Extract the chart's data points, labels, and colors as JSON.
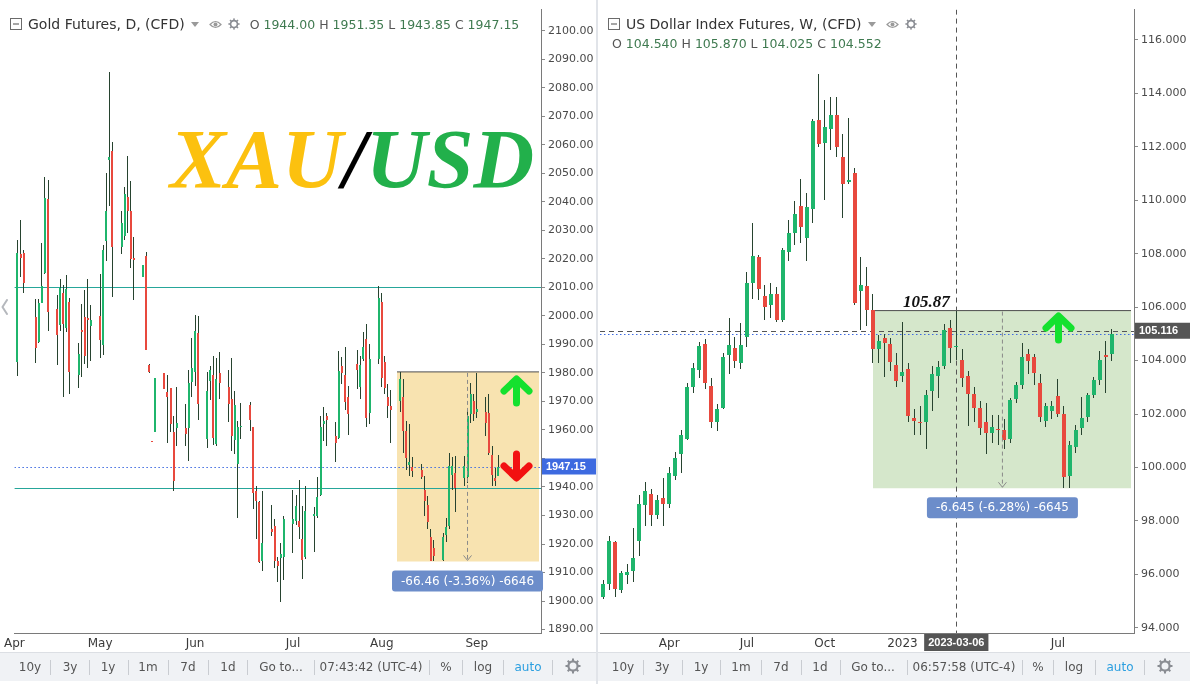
{
  "chart_data": [
    {
      "type": "candlestick",
      "title": "Gold Futures, D, (CFD)",
      "subtitle": "O 1944.00 H 1951.35 L 1943.85 C 1947.15",
      "x": [
        "2023-04-04",
        "2023-04-05",
        "2023-04-06",
        "2023-04-10",
        "2023-04-11",
        "2023-04-12",
        "2023-04-13",
        "2023-04-14",
        "2023-04-17",
        "2023-04-18",
        "2023-04-19",
        "2023-04-20",
        "2023-04-21",
        "2023-04-24",
        "2023-04-25",
        "2023-04-26",
        "2023-04-27",
        "2023-04-28",
        "2023-05-01",
        "2023-05-02",
        "2023-05-03",
        "2023-05-04",
        "2023-05-05",
        "2023-05-08",
        "2023-05-09",
        "2023-05-10",
        "2023-05-11",
        "2023-05-12",
        "2023-05-15",
        "2023-05-16",
        "2023-05-17",
        "2023-05-18",
        "2023-05-19",
        "2023-05-22",
        "2023-05-23",
        "2023-05-24",
        "2023-05-25",
        "2023-05-26",
        "2023-05-29",
        "2023-05-30",
        "2023-05-31",
        "2023-06-01",
        "2023-06-02",
        "2023-06-05",
        "2023-06-06",
        "2023-06-07",
        "2023-06-08",
        "2023-06-09",
        "2023-06-12",
        "2023-06-13",
        "2023-06-14",
        "2023-06-15",
        "2023-06-16",
        "2023-06-19",
        "2023-06-20",
        "2023-06-21",
        "2023-06-22",
        "2023-06-23",
        "2023-06-26",
        "2023-06-27",
        "2023-06-28",
        "2023-06-29",
        "2023-06-30",
        "2023-07-03",
        "2023-07-04",
        "2023-07-05",
        "2023-07-06",
        "2023-07-07",
        "2023-07-10",
        "2023-07-11",
        "2023-07-12",
        "2023-07-13",
        "2023-07-14",
        "2023-07-17",
        "2023-07-18",
        "2023-07-19",
        "2023-07-20",
        "2023-07-21",
        "2023-07-24",
        "2023-07-25",
        "2023-07-26",
        "2023-07-27",
        "2023-07-28",
        "2023-07-31",
        "2023-08-01",
        "2023-08-02",
        "2023-08-03",
        "2023-08-04",
        "2023-08-07",
        "2023-08-08",
        "2023-08-09",
        "2023-08-10",
        "2023-08-11",
        "2023-08-14",
        "2023-08-15",
        "2023-08-16",
        "2023-08-17",
        "2023-08-18",
        "2023-08-21",
        "2023-08-22",
        "2023-08-23",
        "2023-08-24",
        "2023-08-25",
        "2023-08-28",
        "2023-08-29",
        "2023-08-30",
        "2023-08-31",
        "2023-09-01",
        "2023-09-04",
        "2023-09-05",
        "2023-09-06",
        "2023-09-07",
        "2023-09-08"
      ],
      "ohlc": [
        [
          1983.8,
          2026.7,
          1978.8,
          2021.9
        ],
        [
          2021.7,
          2033.6,
          2013.6,
          2020.4
        ],
        [
          2021.9,
          2023.0,
          2008.0,
          2011.4
        ],
        [
          1999.6,
          2006.0,
          1983.6,
          1988.6
        ],
        [
          1990.7,
          2006.0,
          1990.5,
          2004.5
        ],
        [
          2004.6,
          2025.4,
          2004.6,
          2010.4
        ],
        [
          2015.1,
          2048.8,
          2014.8,
          2041.3
        ],
        [
          2041.0,
          2047.6,
          1994.8,
          2001.4
        ],
        [
          2002.5,
          2007.3,
          1982.9,
          1993.3
        ],
        [
          1996.7,
          2013.0,
          1994.8,
          2009.8
        ],
        [
          2008.0,
          2011.0,
          1971.7,
          1997.3
        ],
        [
          1995.7,
          2014.2,
          1994.2,
          2009.4
        ],
        [
          2004.7,
          2006.3,
          1972.7,
          1980.4
        ],
        [
          1979.4,
          1990.4,
          1974.8,
          1986.7
        ],
        [
          1995.1,
          2004.2,
          1978.6,
          1994.5
        ],
        [
          1999.6,
          2009.2,
          1983.2,
          1986.1
        ],
        [
          1999.2,
          2013.0,
          1981.7,
          1998.5
        ],
        [
          1996.4,
          2003.8,
          1984.2,
          1998.6
        ],
        [
          2000.1,
          2014.8,
          1985.4,
          1991.7
        ],
        [
          1989.8,
          2025.0,
          1986.4,
          2023.0
        ],
        [
          2026.1,
          2050.1,
          2019.2,
          2036.7
        ],
        [
          2054.5,
          2085.4,
          2038.6,
          2055.7
        ],
        [
          2057.9,
          2061.0,
          2006.7,
          2024.2
        ],
        [
          2024.2,
          2036.9,
          2021.7,
          2032.7
        ],
        [
          2027.9,
          2045.2,
          2026.7,
          2042.6
        ],
        [
          2041.7,
          2056.0,
          2029.2,
          2036.9
        ],
        [
          2036.7,
          2047.3,
          2016.7,
          2020.0
        ],
        [
          2020.4,
          2027.6,
          2005.5,
          2019.5
        ],
        [
          2013.6,
          2018.0,
          2013.5,
          2017.7
        ],
        [
          2021.0,
          2022.3,
          1988.0,
          1988.2
        ],
        [
          1982.9,
          1983.0,
          1980.0,
          1980.2
        ],
        [
          1956.2,
          1956.2,
          1955.8,
          1955.8
        ],
        [
          1959.2,
          1978.2,
          1959.2,
          1978.2
        ],
        [
          1979.8,
          1979.8,
          1974.2,
          1974.2
        ],
        [
          1973.3,
          1979.2,
          1955.4,
          1971.7
        ],
        [
          1974.8,
          1974.8,
          1959.2,
          1962.0
        ],
        [
          1959.2,
          1964.8,
          1938.6,
          1942.0
        ],
        [
          1960.8,
          1975.2,
          1954.2,
          1962.3
        ],
        [
          1960.8,
          1969.2,
          1954.2,
          1958.6
        ],
        [
          1960.7,
          1981.1,
          1949.2,
          1976.5
        ],
        [
          1976.7,
          1992.3,
          1971.7,
          1981.7
        ],
        [
          1980.4,
          2000.2,
          1975.4,
          1994.8
        ],
        [
          1994.0,
          2000.0,
          1963.6,
          1969.2
        ],
        [
          1956.7,
          1980.4,
          1953.6,
          1973.6
        ],
        [
          1977.3,
          1982.3,
          1970.4,
          1981.0
        ],
        [
          1979.2,
          1986.1,
          1954.8,
          1957.3
        ],
        [
          1955.2,
          1985.2,
          1954.5,
          1978.0
        ],
        [
          1980.1,
          1987.3,
          1970.7,
          1976.3
        ],
        [
          1975.1,
          1981.1,
          1962.7,
          1969.2
        ],
        [
          1970.7,
          1985.2,
          1952.7,
          1957.9
        ],
        [
          1956.5,
          1973.6,
          1951.7,
          1968.6
        ],
        [
          1947.9,
          1963.0,
          1929.2,
          1961.1
        ],
        [
          1960.9,
          1969.6,
          1956.7,
          1961.5
        ],
        [
          1968.6,
          1969.8,
          1959.8,
          1963.6
        ],
        [
          1961.1,
          1961.1,
          1932.3,
          1937.9
        ],
        [
          1938.6,
          1940.4,
          1921.7,
          1935.2
        ],
        [
          1934.8,
          1935.2,
          1913.2,
          1913.8
        ],
        [
          1914.2,
          1938.6,
          1910.7,
          1920.2
        ],
        [
          1925.2,
          1933.6,
          1922.9,
          1924.2
        ],
        [
          1926.3,
          1928.9,
          1911.7,
          1914.2
        ],
        [
          1914.2,
          1915.4,
          1906.7,
          1912.3
        ],
        [
          1915.0,
          1920.4,
          1899.8,
          1916.5
        ],
        [
          1915.5,
          1929.8,
          1907.3,
          1928.6
        ],
        [
          1926.9,
          1938.9,
          1916.7,
          1928.6
        ],
        [
          1928.0,
          1937.3,
          1926.7,
          1933.2
        ],
        [
          1928.2,
          1942.3,
          1921.7,
          1926.1
        ],
        [
          1921.7,
          1933.2,
          1907.9,
          1914.4
        ],
        [
          1915.5,
          1940.4,
          1914.8,
          1931.7
        ],
        [
          1929.8,
          1932.9,
          1917.3,
          1930.4
        ],
        [
          1929.8,
          1943.6,
          1929.2,
          1936.5
        ],
        [
          1937.3,
          1964.8,
          1936.7,
          1961.1
        ],
        [
          1962.0,
          1967.9,
          1956.1,
          1963.2
        ],
        [
          1964.8,
          1966.1,
          1954.2,
          1963.6
        ],
        [
          1957.9,
          1962.9,
          1948.6,
          1955.4
        ],
        [
          1957.3,
          1987.7,
          1957.0,
          1980.5
        ],
        [
          1982.3,
          1985.5,
          1976.1,
          1979.8
        ],
        [
          1979.2,
          1989.2,
          1966.9,
          1969.8
        ],
        [
          1971.7,
          1975.5,
          1958.2,
          1965.7
        ],
        [
          1983.0,
          1987.9,
          1974.2,
          1981.1
        ],
        [
          1975.2,
          1986.1,
          1970.7,
          1982.7
        ],
        [
          1984.8,
          1994.2,
          1984.2,
          1989.2
        ],
        [
          1992.0,
          1997.0,
          1961.0,
          1964.2
        ],
        [
          1966.0,
          1990.0,
          1962.0,
          1985.0
        ],
        [
          1985.0,
          2010.4,
          1983.0,
          2006.3
        ],
        [
          2005.0,
          2008.0,
          1975.0,
          1978.2
        ],
        [
          1984.0,
          1986.0,
          1972.5,
          1974.6
        ],
        [
          1971.5,
          1976.0,
          1964.2,
          1968.3
        ],
        [
          1968.4,
          1974.0,
          1955.5,
          1967.0
        ],
        [
          1970.2,
          1980.3,
          1966.4,
          1977.8
        ],
        [
          1971.4,
          1978.0,
          1952.0,
          1959.5
        ],
        [
          1959.5,
          1963.3,
          1945.8,
          1950.0
        ],
        [
          1947.7,
          1962.0,
          1944.0,
          1948.9
        ],
        [
          1947.0,
          1950.5,
          1943.5,
          1945.5
        ],
        [
          1945.8,
          1948.0,
          1942.8,
          1943.5
        ],
        [
          1939.0,
          1944.0,
          1929.9,
          1935.2
        ],
        [
          1933.6,
          1936.7,
          1925.3,
          1927.6
        ],
        [
          1922.3,
          1925.3,
          1913.9,
          1913.9
        ],
        [
          1918.7,
          1921.5,
          1914.0,
          1915.7
        ],
        [
          1914.5,
          1924.0,
          1914.0,
          1922.3
        ],
        [
          1923.3,
          1929.0,
          1920.7,
          1925.9
        ],
        [
          1926.2,
          1951.9,
          1925.3,
          1947.4
        ],
        [
          1944.3,
          1950.4,
          1939.0,
          1947.4
        ],
        [
          1945.0,
          1951.0,
          1931.4,
          1939.8
        ],
        [
          1943.1,
          1950.7,
          1940.5,
          1947.4
        ],
        [
          1943.6,
          1967.1,
          1941.3,
          1964.9
        ],
        [
          1965.6,
          1976.6,
          1962.6,
          1972.5
        ],
        [
          1970.2,
          1972.5,
          1963.3,
          1965.6
        ],
        [
          1966.4,
          1980.1,
          1964.1,
          1967.2
        ],
        [
          1966.4,
          1971.7,
          1958.0,
          1962.6
        ],
        [
          1966.0,
          1972.5,
          1951.2,
          1952.0
        ],
        [
          1951.2,
          1954.2,
          1940.5,
          1944.3
        ],
        [
          1943.1,
          1946.6,
          1940.5,
          1942.0
        ],
        [
          1944.0,
          1951.35,
          1943.85,
          1947.15
        ]
      ],
      "series": [
        {
          "type": "bar",
          "x": [
            "2023-08-29"
          ],
          "base": [
            1913.9
          ],
          "values": [
            66.46
          ],
          "color": "#f8e3b0"
        }
      ],
      "xlim": [
        "2023-04-03",
        "2023-09-22"
      ],
      "xticks": [
        {
          "value": "2023-04-03",
          "label": "Apr"
        },
        {
          "value": "2023-05-01",
          "label": "May"
        },
        {
          "value": "2023-06-01",
          "label": "Jun"
        },
        {
          "value": "2023-07-03",
          "label": "Jul"
        },
        {
          "value": "2023-08-01",
          "label": "Aug"
        },
        {
          "value": "2023-09-01",
          "label": "Sep"
        }
      ],
      "ylim": [
        1888.8,
        2107.4
      ],
      "yticks": [
        {
          "value": 1890,
          "label": "1890.00"
        },
        {
          "value": 1900,
          "label": "1900.00"
        },
        {
          "value": 1910,
          "label": "1910.00"
        },
        {
          "value": 1920,
          "label": "1920.00"
        },
        {
          "value": 1930,
          "label": "1930.00"
        },
        {
          "value": 1940,
          "label": "1940.00"
        },
        {
          "value": 1950,
          "label": null
        },
        {
          "value": 1960,
          "label": "1960.00"
        },
        {
          "value": 1970,
          "label": "1970.00"
        },
        {
          "value": 1980,
          "label": "1980.00"
        },
        {
          "value": 1990,
          "label": "1990.00"
        },
        {
          "value": 2000,
          "label": "2000.00"
        },
        {
          "value": 2010,
          "label": "2010.00"
        },
        {
          "value": 2020,
          "label": "2020.00"
        },
        {
          "value": 2030,
          "label": "2030.00"
        },
        {
          "value": 2040,
          "label": "2040.00"
        },
        {
          "value": 2050,
          "label": "2050.00"
        },
        {
          "value": 2060,
          "label": "2060.00"
        },
        {
          "value": 2070,
          "label": "2070.00"
        },
        {
          "value": 2080,
          "label": "2080.00"
        },
        {
          "value": 2090,
          "label": "2090.00"
        },
        {
          "value": 2100,
          "label": "2100.00"
        }
      ],
      "ref_lines": [
        {
          "axis": "y",
          "value": 2010.0,
          "color": "#26a69a"
        },
        {
          "axis": "y",
          "value": 1939.7,
          "color": "#26a69a"
        },
        {
          "axis": "y",
          "value": 1947.15,
          "label": "1947.15",
          "color": "#3d6ae0",
          "line_style": "dotted"
        }
      ],
      "annotations": [
        {
          "text": "-66.46 (-3.36%) -6646",
          "x": "2023-08-29",
          "y": 1913.9
        },
        "10y",
        "3y",
        "1y",
        "1m",
        "7d",
        "1d",
        "Go to...",
        "07:43:42 (UTC-4)",
        "%",
        "log",
        "auto"
      ]
    },
    {
      "type": "candlestick",
      "title": "US Dollar Index Futures, W, (CFD)",
      "subtitle": "O 104.540 H 105.870 L 104.025 C 104.552",
      "x": [
        "2022-01-17",
        "2022-01-24",
        "2022-01-31",
        "2022-02-07",
        "2022-02-14",
        "2022-02-21",
        "2022-02-28",
        "2022-03-07",
        "2022-03-14",
        "2022-03-21",
        "2022-03-28",
        "2022-04-04",
        "2022-04-11",
        "2022-04-18",
        "2022-04-25",
        "2022-05-02",
        "2022-05-09",
        "2022-05-16",
        "2022-05-23",
        "2022-05-30",
        "2022-06-06",
        "2022-06-13",
        "2022-06-20",
        "2022-06-27",
        "2022-07-04",
        "2022-07-11",
        "2022-07-18",
        "2022-07-25",
        "2022-08-01",
        "2022-08-08",
        "2022-08-15",
        "2022-08-22",
        "2022-08-29",
        "2022-09-05",
        "2022-09-12",
        "2022-09-19",
        "2022-09-26",
        "2022-10-03",
        "2022-10-10",
        "2022-10-17",
        "2022-10-24",
        "2022-10-31",
        "2022-11-07",
        "2022-11-14",
        "2022-11-21",
        "2022-11-28",
        "2022-12-05",
        "2022-12-12",
        "2022-12-19",
        "2022-12-26",
        "2023-01-02",
        "2023-01-09",
        "2023-01-16",
        "2023-01-23",
        "2023-01-30",
        "2023-02-06",
        "2023-02-13",
        "2023-02-20",
        "2023-02-27",
        "2023-03-06",
        "2023-03-13",
        "2023-03-20",
        "2023-03-27",
        "2023-04-03",
        "2023-04-10",
        "2023-04-17",
        "2023-04-24",
        "2023-05-01",
        "2023-05-08",
        "2023-05-15",
        "2023-05-22",
        "2023-05-29",
        "2023-06-05",
        "2023-06-12",
        "2023-06-19",
        "2023-06-26",
        "2023-07-03",
        "2023-07-10",
        "2023-07-17",
        "2023-07-24",
        "2023-07-31",
        "2023-08-07",
        "2023-08-14",
        "2023-08-21",
        "2023-08-28",
        "2023-09-04"
      ],
      "ohlc": [
        [
          95.16,
          95.8,
          95.08,
          95.65
        ],
        [
          95.65,
          97.43,
          95.4,
          97.27
        ],
        [
          97.22,
          97.27,
          95.16,
          95.44
        ],
        [
          95.4,
          96.13,
          95.32,
          96.05
        ],
        [
          95.97,
          96.38,
          95.65,
          96.08
        ],
        [
          96.13,
          97.75,
          95.73,
          96.62
        ],
        [
          97.27,
          98.97,
          96.7,
          98.64
        ],
        [
          98.61,
          99.45,
          97.83,
          99.13
        ],
        [
          99.0,
          99.21,
          97.83,
          98.24
        ],
        [
          98.24,
          98.97,
          98.07,
          98.8
        ],
        [
          98.85,
          99.61,
          97.83,
          98.64
        ],
        [
          98.64,
          100.02,
          98.48,
          99.78
        ],
        [
          99.7,
          100.59,
          99.53,
          100.34
        ],
        [
          100.5,
          101.39,
          99.78,
          101.23
        ],
        [
          101.07,
          103.17,
          101.04,
          103.01
        ],
        [
          103.01,
          103.9,
          102.77,
          103.74
        ],
        [
          103.66,
          104.71,
          103.34,
          104.55
        ],
        [
          104.63,
          104.8,
          102.95,
          103.18
        ],
        [
          103.05,
          103.34,
          101.48,
          101.72
        ],
        [
          101.72,
          102.37,
          101.36,
          102.2
        ],
        [
          102.24,
          104.3,
          102.2,
          104.15
        ],
        [
          104.2,
          105.6,
          103.5,
          104.6
        ],
        [
          104.47,
          104.88,
          103.74,
          103.98
        ],
        [
          103.9,
          105.4,
          103.7,
          104.6
        ],
        [
          104.9,
          107.3,
          104.5,
          106.9
        ],
        [
          106.9,
          109.13,
          106.3,
          107.9
        ],
        [
          107.87,
          107.95,
          106.25,
          106.66
        ],
        [
          106.41,
          106.82,
          105.53,
          106.0
        ],
        [
          106.09,
          106.9,
          105.6,
          106.5
        ],
        [
          106.5,
          106.74,
          105.44,
          105.53
        ],
        [
          105.53,
          108.2,
          105.44,
          108.12
        ],
        [
          108.07,
          109.25,
          107.71,
          108.76
        ],
        [
          108.76,
          109.98,
          108.34,
          109.47
        ],
        [
          109.8,
          110.8,
          108.41,
          109.01
        ],
        [
          108.6,
          110.27,
          107.74,
          109.74
        ],
        [
          109.67,
          113.05,
          109.14,
          112.96
        ],
        [
          113.0,
          114.73,
          112.0,
          112.11
        ],
        [
          112.13,
          113.73,
          110.01,
          112.73
        ],
        [
          112.66,
          113.86,
          111.87,
          113.2
        ],
        [
          113.17,
          113.86,
          111.6,
          112.0
        ],
        [
          111.6,
          112.47,
          109.34,
          110.6
        ],
        [
          110.67,
          113.06,
          110.6,
          110.76
        ],
        [
          111.0,
          111.2,
          106.08,
          106.15
        ],
        [
          106.61,
          107.88,
          105.15,
          106.81
        ],
        [
          106.8,
          107.5,
          105.3,
          105.9
        ],
        [
          105.9,
          106.5,
          103.9,
          104.45
        ],
        [
          104.42,
          104.95,
          103.9,
          104.75
        ],
        [
          104.84,
          105.0,
          103.4,
          104.64
        ],
        [
          104.62,
          104.85,
          103.6,
          103.95
        ],
        [
          103.82,
          104.3,
          103.0,
          103.22
        ],
        [
          103.42,
          105.44,
          103.2,
          103.59
        ],
        [
          103.69,
          103.9,
          101.7,
          101.93
        ],
        [
          101.86,
          102.2,
          101.2,
          101.73
        ],
        [
          101.7,
          102.3,
          101.2,
          101.69
        ],
        [
          101.69,
          102.9,
          100.7,
          102.72
        ],
        [
          102.85,
          103.8,
          102.1,
          103.49
        ],
        [
          103.42,
          104.0,
          102.6,
          103.75
        ],
        [
          103.78,
          105.38,
          103.7,
          105.15
        ],
        [
          105.22,
          105.5,
          103.9,
          104.48
        ],
        [
          104.54,
          105.87,
          104.025,
          104.552
        ],
        [
          104.02,
          104.42,
          103.02,
          103.35
        ],
        [
          103.42,
          103.62,
          101.56,
          102.76
        ],
        [
          102.76,
          103.02,
          101.69,
          102.22
        ],
        [
          102.22,
          102.49,
          101.22,
          101.49
        ],
        [
          101.72,
          102.4,
          100.5,
          101.3
        ],
        [
          101.31,
          101.95,
          100.9,
          101.52
        ],
        [
          101.45,
          101.95,
          100.85,
          101.42
        ],
        [
          101.4,
          101.8,
          100.7,
          101.04
        ],
        [
          101.07,
          102.6,
          100.9,
          102.53
        ],
        [
          102.56,
          103.2,
          102.4,
          103.1
        ],
        [
          103.1,
          104.65,
          102.95,
          104.15
        ],
        [
          104.23,
          104.45,
          103.5,
          103.99
        ],
        [
          104.15,
          104.26,
          103.1,
          103.53
        ],
        [
          103.18,
          103.5,
          101.7,
          101.88
        ],
        [
          101.75,
          102.4,
          101.5,
          102.29
        ],
        [
          102.12,
          102.5,
          101.8,
          102.29
        ],
        [
          102.66,
          103.3,
          101.9,
          102.01
        ],
        [
          102.01,
          102.3,
          99.25,
          99.65
        ],
        [
          99.69,
          101.0,
          99.225,
          100.83
        ],
        [
          100.75,
          101.6,
          100.55,
          101.4
        ],
        [
          101.48,
          102.65,
          101.2,
          101.85
        ],
        [
          101.88,
          102.8,
          101.7,
          102.72
        ],
        [
          102.72,
          103.4,
          102.6,
          103.29
        ],
        [
          103.29,
          104.35,
          103.1,
          104.02
        ],
        [
          104.2,
          104.75,
          102.8,
          104.15
        ],
        [
          104.23,
          105.17,
          104.0,
          104.98
        ]
      ],
      "series": [
        {
          "type": "bar",
          "x": [
            "2023-04-29"
          ],
          "base": [
            99.225
          ],
          "values": [
            6.645
          ],
          "color": "#d5e7cb"
        }
      ],
      "xlim": [
        "2022-01-13",
        "2023-09-30"
      ],
      "xticks": [
        {
          "value": "2022-04-04",
          "label": "Apr"
        },
        {
          "value": "2022-07-04",
          "label": "Jul"
        },
        {
          "value": "2022-10-03",
          "label": "Oct"
        },
        {
          "value": "2023-01-02",
          "label": "2023"
        },
        {
          "value": "2023-07-03",
          "label": "Jul"
        }
      ],
      "ylim": [
        93.81,
        117.13
      ],
      "yticks": [
        {
          "value": 94,
          "label": "94.000"
        },
        {
          "value": 96,
          "label": "96.000"
        },
        {
          "value": 98,
          "label": "98.000"
        },
        {
          "value": 100,
          "label": "100.000"
        },
        {
          "value": 102,
          "label": "102.000"
        },
        {
          "value": 104,
          "label": "104.000"
        },
        {
          "value": 106,
          "label": "106.000"
        },
        {
          "value": 108,
          "label": "108.000"
        },
        {
          "value": 110,
          "label": "110.000"
        },
        {
          "value": 112,
          "label": "112.000"
        },
        {
          "value": 114,
          "label": "114.000"
        },
        {
          "value": 116,
          "label": "116.000"
        }
      ],
      "ref_lines": [
        {
          "axis": "y",
          "value": 104.98,
          "color": "#3d6ae0",
          "line_style": "dotted"
        },
        {
          "axis": "y",
          "value": 105.116,
          "label": "105.116",
          "color": "#555555",
          "line_style": "dashed"
        },
        {
          "axis": "x",
          "value": "2023-03-06",
          "label": "2023-03-06",
          "color": "#555555",
          "line_style": "dashed"
        }
      ],
      "annotations": [
        {
          "text": "105.87",
          "x": "2023-01-30",
          "y": 105.87
        },
        {
          "text": "-6.645 (-6.28%) -6645",
          "x": "2023-04-29",
          "y": 99.225
        },
        "10y",
        "3y",
        "1y",
        "1m",
        "7d",
        "1d",
        "Go to...",
        "06:57:58 (UTC-4)",
        "%",
        "log",
        "auto"
      ]
    },
    {
      "type": "other",
      "annotations": [
        "XAU",
        "/",
        "USD"
      ],
      "colors": [
        "#fcc10f",
        "#000000",
        "#22b04b"
      ]
    }
  ]
}
